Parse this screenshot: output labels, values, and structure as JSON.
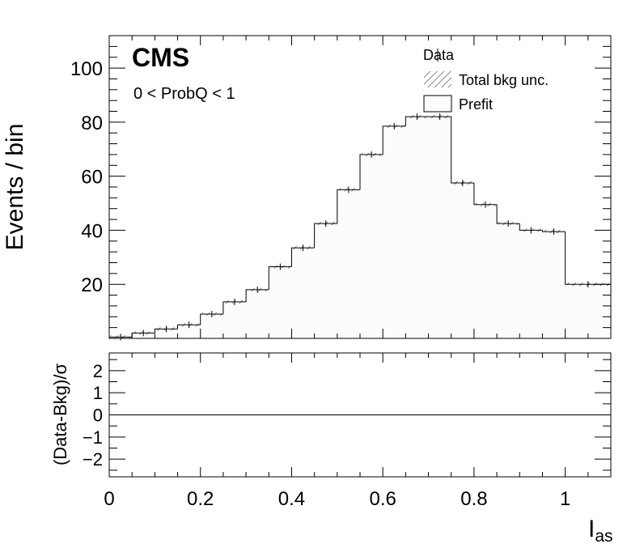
{
  "chart_data": [
    {
      "type": "histogram",
      "panel": "main",
      "experiment_label": "CMS",
      "region_label": "0 < ProbQ < 1",
      "ylabel": "Events / bin",
      "ylim": [
        0,
        112
      ],
      "yticks": [
        20,
        40,
        60,
        80,
        100
      ],
      "xlim": [
        0,
        1.1
      ],
      "bin_edges": [
        0.0,
        0.05,
        0.1,
        0.15,
        0.2,
        0.25,
        0.3,
        0.35,
        0.4,
        0.45,
        0.5,
        0.55,
        0.6,
        0.65,
        0.7,
        0.75,
        0.8,
        0.85,
        0.9,
        0.95,
        1.0,
        1.1
      ],
      "series": [
        {
          "name": "Prefit",
          "values": [
            0.5,
            2,
            3.5,
            5,
            9,
            13.5,
            18,
            26.5,
            33.5,
            42.5,
            55,
            68,
            78.5,
            82,
            82,
            57.5,
            49.5,
            42.5,
            40,
            39.5,
            20
          ]
        },
        {
          "name": "Data",
          "values": [
            0.5,
            2,
            3.5,
            5,
            9,
            13.5,
            18,
            26.5,
            33.5,
            42.5,
            55,
            68,
            78.5,
            82,
            82,
            57.5,
            49.5,
            42.5,
            40,
            39.5,
            20
          ]
        }
      ],
      "legend": {
        "title": "Data",
        "entries": [
          "Total bkg unc.",
          "Prefit"
        ],
        "position": "top-right"
      }
    },
    {
      "type": "line",
      "panel": "ratio",
      "ylabel": "(Data-Bkg)/σ",
      "ylim": [
        -2.8,
        2.8
      ],
      "yticks": [
        2,
        1,
        0,
        -1,
        -2
      ],
      "ytick_labels": [
        "2",
        "1",
        "0",
        "−1",
        "−2"
      ],
      "xlabel_main": "I",
      "xlabel_sub": "as",
      "xlim": [
        0,
        1.1
      ],
      "xticks": [
        0,
        0.2,
        0.4,
        0.6,
        0.8,
        1
      ],
      "xtick_labels": [
        "0",
        "0.2",
        "0.4",
        "0.6",
        "0.8",
        "1"
      ],
      "reference_line": 0
    }
  ]
}
